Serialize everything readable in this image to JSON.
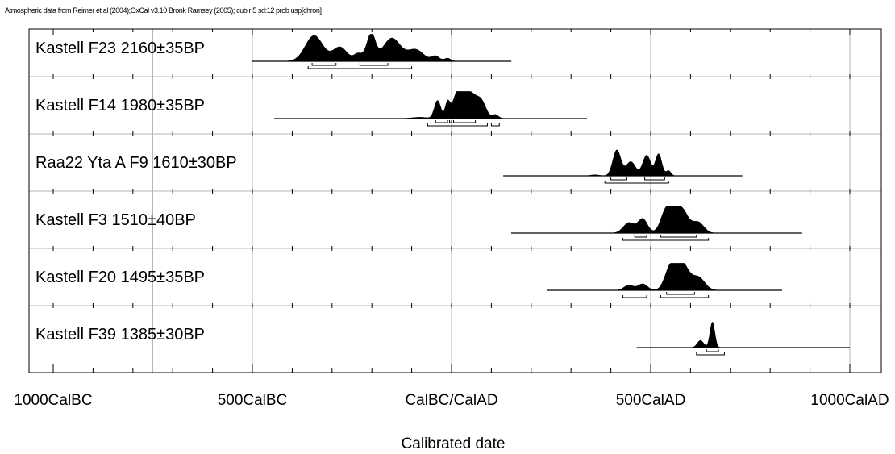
{
  "chart_data": {
    "type": "oxcal-multiplot",
    "header": "Atmospheric data from Reimer et al (2004);OxCal v3.10 Bronk Ramsey (2005); cub r:5 sd:12 prob usp[chron]",
    "xlabel": "Calibrated date",
    "xlim": [
      -1000,
      1000
    ],
    "x_tick_labels": [
      {
        "value": -1000,
        "label": "1000CalBC"
      },
      {
        "value": -500,
        "label": "500CalBC"
      },
      {
        "value": 0,
        "label": "CalBC/CalAD"
      },
      {
        "value": 500,
        "label": "500CalAD"
      },
      {
        "value": 1000,
        "label": "1000CalAD"
      }
    ],
    "grid": true,
    "samples": [
      {
        "label": "Kastell F23  2160±35BP",
        "range": [
          -500,
          150
        ],
        "peaks": [
          [
            -345,
            1.0,
            22
          ],
          [
            -280,
            0.55,
            18
          ],
          [
            -235,
            0.28,
            10
          ],
          [
            -205,
            0.52,
            12
          ],
          [
            -200,
            0.55,
            10
          ],
          [
            -150,
            0.9,
            22
          ],
          [
            -90,
            0.45,
            20
          ],
          [
            -40,
            0.2,
            10
          ],
          [
            -10,
            0.12,
            8
          ]
        ],
        "ranges_1sigma": [
          [
            -350,
            -290
          ],
          [
            -230,
            -160
          ]
        ],
        "ranges_2sigma": [
          [
            -360,
            -100
          ]
        ]
      },
      {
        "label": "Kastell F14  1980±35BP",
        "range": [
          -445,
          340
        ],
        "peaks": [
          [
            -80,
            0.05,
            20
          ],
          [
            -35,
            0.7,
            8
          ],
          [
            -10,
            0.6,
            6
          ],
          [
            15,
            0.95,
            12
          ],
          [
            45,
            1.0,
            16
          ],
          [
            75,
            0.6,
            12
          ],
          [
            110,
            0.15,
            8
          ]
        ],
        "ranges_1sigma": [
          [
            -40,
            -10
          ],
          [
            -5,
            0
          ],
          [
            5,
            60
          ]
        ],
        "ranges_2sigma": [
          [
            -60,
            90
          ],
          [
            100,
            120
          ]
        ]
      },
      {
        "label": "Raa22 Yta A F9  1610±30BP",
        "range": [
          130,
          730
        ],
        "peaks": [
          [
            360,
            0.04,
            10
          ],
          [
            415,
            1.0,
            10
          ],
          [
            450,
            0.55,
            12
          ],
          [
            490,
            0.8,
            10
          ],
          [
            520,
            0.85,
            8
          ],
          [
            545,
            0.2,
            6
          ]
        ],
        "ranges_1sigma": [
          [
            400,
            440
          ],
          [
            485,
            535
          ]
        ],
        "ranges_2sigma": [
          [
            385,
            545
          ]
        ]
      },
      {
        "label": "Kastell F3  1510±40BP",
        "range": [
          150,
          880
        ],
        "peaks": [
          [
            445,
            0.4,
            14
          ],
          [
            480,
            0.55,
            12
          ],
          [
            540,
            0.9,
            14
          ],
          [
            575,
            1.0,
            18
          ],
          [
            620,
            0.4,
            14
          ]
        ],
        "ranges_1sigma": [
          [
            460,
            490
          ],
          [
            525,
            615
          ]
        ],
        "ranges_2sigma": [
          [
            430,
            645
          ]
        ]
      },
      {
        "label": "Kastell F20  1495±35BP",
        "range": [
          240,
          830
        ],
        "peaks": [
          [
            445,
            0.2,
            12
          ],
          [
            480,
            0.25,
            12
          ],
          [
            550,
            0.9,
            14
          ],
          [
            580,
            1.0,
            16
          ],
          [
            620,
            0.5,
            16
          ]
        ],
        "ranges_1sigma": [
          [
            540,
            610
          ]
        ],
        "ranges_2sigma": [
          [
            430,
            490
          ],
          [
            525,
            645
          ]
        ]
      },
      {
        "label": "Kastell F39  1385±30BP",
        "range": [
          465,
          1000
        ],
        "peaks": [
          [
            625,
            0.28,
            8
          ],
          [
            655,
            1.0,
            6
          ]
        ],
        "ranges_1sigma": [
          [
            640,
            670
          ]
        ],
        "ranges_2sigma": [
          [
            615,
            685
          ]
        ]
      }
    ]
  }
}
